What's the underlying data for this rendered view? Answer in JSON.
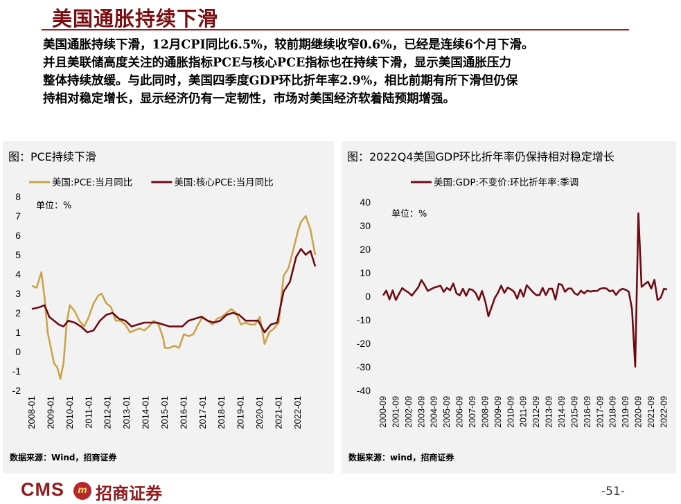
{
  "page": {
    "title": "美国通胀持续下滑",
    "summary_lines": [
      "美国通胀持续下滑，12月CPI同比6.5%，较前期继续收窄0.6%，已经是连续6个月下滑。",
      "并且美联储高度关注的通胀指标PCE与核心PCE指标也在持续下滑，显示美国通胀压力",
      "整体持续放缓。与此同时，美国四季度GDP环比折年率2.9%，相比前期有所下滑但仍保",
      "持相对稳定增长，显示经济仍有一定韧性，市场对美国经济软着陆预期增强。"
    ],
    "page_number": "-51-",
    "logo_text": "CMS",
    "logo_emblem": "m",
    "logo_cn": "招商证券"
  },
  "colors": {
    "title": "#7b0d10",
    "pce": "#c9a44a",
    "core_pce": "#6b0b12",
    "gdp": "#6b0b12",
    "panel_bg": "#f2f2f2"
  },
  "chart_data": [
    {
      "type": "line",
      "title": "图：PCE持续下滑",
      "unit_label": "单位：%",
      "source": "数据来源：Wind，招商证券",
      "ylim": [
        -2,
        8
      ],
      "yticks": [
        -2,
        -1,
        0,
        1,
        2,
        3,
        4,
        5,
        6,
        7,
        8
      ],
      "xlim": [
        "2008-01",
        "2022-12"
      ],
      "xticks": [
        "2008-01",
        "2009-01",
        "2010-01",
        "2011-01",
        "2012-01",
        "2013-01",
        "2014-01",
        "2015-01",
        "2016-01",
        "2017-01",
        "2018-01",
        "2019-01",
        "2020-01",
        "2021-01",
        "2022-01"
      ],
      "legend_position": "top",
      "grid": false,
      "series": [
        {
          "name": "美国:PCE:当月同比",
          "color": "#c9a44a",
          "x": [
            "2008-01",
            "2008-04",
            "2008-07",
            "2008-09",
            "2008-11",
            "2009-01",
            "2009-03",
            "2009-05",
            "2009-07",
            "2009-09",
            "2009-11",
            "2010-01",
            "2010-04",
            "2010-07",
            "2010-10",
            "2011-01",
            "2011-04",
            "2011-07",
            "2011-09",
            "2011-12",
            "2012-03",
            "2012-06",
            "2012-09",
            "2012-12",
            "2013-03",
            "2013-06",
            "2013-09",
            "2013-12",
            "2014-03",
            "2014-06",
            "2014-09",
            "2014-12",
            "2015-01",
            "2015-04",
            "2015-07",
            "2015-10",
            "2016-01",
            "2016-04",
            "2016-07",
            "2016-10",
            "2017-01",
            "2017-04",
            "2017-07",
            "2017-10",
            "2018-01",
            "2018-04",
            "2018-07",
            "2018-10",
            "2019-01",
            "2019-04",
            "2019-07",
            "2019-10",
            "2020-01",
            "2020-04",
            "2020-07",
            "2020-10",
            "2021-01",
            "2021-04",
            "2021-07",
            "2021-10",
            "2022-01",
            "2022-03",
            "2022-06",
            "2022-09",
            "2022-12"
          ],
          "values": [
            3.4,
            3.3,
            4.1,
            2.8,
            1.0,
            0.2,
            -0.6,
            -0.8,
            -1.4,
            -0.6,
            1.5,
            2.4,
            2.1,
            1.6,
            1.3,
            1.8,
            2.5,
            2.9,
            3.0,
            2.5,
            2.3,
            1.6,
            1.6,
            1.4,
            1.0,
            1.1,
            1.2,
            1.1,
            1.3,
            1.6,
            1.4,
            0.7,
            0.2,
            0.2,
            0.3,
            0.2,
            0.9,
            0.8,
            0.9,
            1.4,
            1.8,
            1.6,
            1.4,
            1.7,
            1.8,
            2.0,
            2.2,
            2.0,
            1.4,
            1.5,
            1.4,
            1.4,
            1.8,
            0.4,
            1.0,
            1.2,
            1.5,
            3.9,
            4.3,
            5.2,
            6.2,
            6.7,
            7.0,
            6.3,
            5.0
          ]
        },
        {
          "name": "美国:核心PCE:当月同比",
          "color": "#6b0b12",
          "x": [
            "2008-01",
            "2008-06",
            "2008-09",
            "2008-12",
            "2009-03",
            "2009-06",
            "2009-09",
            "2009-12",
            "2010-04",
            "2010-08",
            "2010-12",
            "2011-04",
            "2011-08",
            "2011-12",
            "2012-04",
            "2012-08",
            "2012-12",
            "2013-04",
            "2013-08",
            "2013-12",
            "2014-04",
            "2014-08",
            "2014-12",
            "2015-04",
            "2015-08",
            "2015-12",
            "2016-04",
            "2016-08",
            "2016-12",
            "2017-04",
            "2017-08",
            "2017-12",
            "2018-04",
            "2018-08",
            "2018-12",
            "2019-04",
            "2019-08",
            "2019-12",
            "2020-04",
            "2020-08",
            "2020-12",
            "2021-04",
            "2021-08",
            "2021-12",
            "2022-03",
            "2022-06",
            "2022-09",
            "2022-12"
          ],
          "values": [
            2.2,
            2.3,
            2.4,
            1.8,
            1.6,
            1.4,
            1.3,
            1.6,
            1.5,
            1.3,
            1.0,
            1.1,
            1.6,
            1.9,
            2.0,
            1.7,
            1.6,
            1.3,
            1.4,
            1.5,
            1.5,
            1.5,
            1.4,
            1.3,
            1.3,
            1.3,
            1.6,
            1.7,
            1.8,
            1.6,
            1.5,
            1.6,
            1.9,
            2.0,
            1.9,
            1.6,
            1.6,
            1.6,
            1.0,
            1.4,
            1.5,
            3.1,
            3.6,
            4.9,
            5.3,
            5.0,
            5.2,
            4.4
          ]
        }
      ]
    },
    {
      "type": "line",
      "title": "图：2022Q4美国GDP环比折年率仍保持相对稳定增长",
      "unit_label": "单位：%",
      "source": "数据来源：wind，招商证券",
      "ylim": [
        -40,
        40
      ],
      "yticks": [
        -40,
        -30,
        -20,
        -10,
        0,
        10,
        20,
        30,
        40
      ],
      "xlim": [
        "2000-09",
        "2022-12"
      ],
      "xticks": [
        "2000-09",
        "2001-09",
        "2002-09",
        "2003-09",
        "2004-09",
        "2005-09",
        "2006-09",
        "2007-09",
        "2008-09",
        "2009-09",
        "2010-09",
        "2011-09",
        "2012-09",
        "2013-09",
        "2014-09",
        "2015-09",
        "2016-09",
        "2017-09",
        "2018-09",
        "2019-09",
        "2020-09",
        "2021-09",
        "2022-09"
      ],
      "legend_position": "top",
      "grid": false,
      "series": [
        {
          "name": "美国:GDP:不变价:环比折年率:季调",
          "color": "#6b0b12",
          "x": [
            "2000-09",
            "2000-12",
            "2001-03",
            "2001-06",
            "2001-09",
            "2001-12",
            "2002-03",
            "2002-06",
            "2002-09",
            "2002-12",
            "2003-03",
            "2003-06",
            "2003-09",
            "2003-12",
            "2004-03",
            "2004-06",
            "2004-09",
            "2004-12",
            "2005-03",
            "2005-06",
            "2005-09",
            "2005-12",
            "2006-03",
            "2006-06",
            "2006-09",
            "2006-12",
            "2007-03",
            "2007-06",
            "2007-09",
            "2007-12",
            "2008-03",
            "2008-06",
            "2008-09",
            "2008-12",
            "2009-03",
            "2009-06",
            "2009-09",
            "2009-12",
            "2010-03",
            "2010-06",
            "2010-09",
            "2010-12",
            "2011-03",
            "2011-06",
            "2011-09",
            "2011-12",
            "2012-03",
            "2012-06",
            "2012-09",
            "2012-12",
            "2013-03",
            "2013-06",
            "2013-09",
            "2013-12",
            "2014-03",
            "2014-06",
            "2014-09",
            "2014-12",
            "2015-03",
            "2015-06",
            "2015-09",
            "2015-12",
            "2016-03",
            "2016-06",
            "2016-09",
            "2016-12",
            "2017-03",
            "2017-06",
            "2017-09",
            "2017-12",
            "2018-03",
            "2018-06",
            "2018-09",
            "2018-12",
            "2019-03",
            "2019-06",
            "2019-09",
            "2019-12",
            "2020-03",
            "2020-06",
            "2020-09",
            "2020-12",
            "2021-03",
            "2021-06",
            "2021-09",
            "2021-12",
            "2022-03",
            "2022-06",
            "2022-09",
            "2022-12"
          ],
          "values": [
            0.4,
            2.4,
            -1.3,
            2.5,
            -1.6,
            1.1,
            3.5,
            2.4,
            1.6,
            0.3,
            2.1,
            3.8,
            6.9,
            4.8,
            2.3,
            3.0,
            3.7,
            4.1,
            4.5,
            1.9,
            3.6,
            2.6,
            5.4,
            1.2,
            0.4,
            3.2,
            0.2,
            3.1,
            2.7,
            1.4,
            -1.6,
            2.3,
            -2.1,
            -8.5,
            -4.6,
            -0.7,
            1.5,
            4.5,
            1.5,
            3.7,
            3.0,
            2.0,
            -1.0,
            2.9,
            -0.1,
            4.7,
            3.2,
            1.7,
            0.5,
            0.5,
            3.6,
            0.5,
            3.2,
            3.2,
            -1.4,
            5.2,
            4.9,
            1.9,
            3.3,
            3.3,
            1.3,
            0.6,
            2.4,
            1.2,
            2.4,
            2.0,
            2.3,
            2.2,
            3.2,
            3.5,
            3.3,
            2.1,
            2.5,
            0.6,
            2.4,
            3.2,
            2.8,
            1.9,
            -5.5,
            -29.9,
            35.3,
            4.0,
            5.2,
            6.2,
            3.3,
            7.0,
            -1.6,
            -0.6,
            3.2,
            2.9
          ]
        }
      ]
    }
  ]
}
